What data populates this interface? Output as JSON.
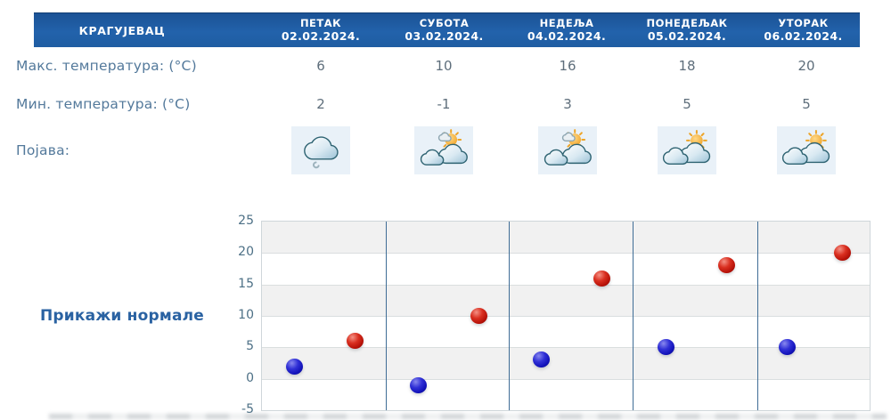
{
  "location": "КРАГУЈЕВАЦ",
  "days": [
    {
      "name": "ПЕТАК",
      "date": "02.02.2024."
    },
    {
      "name": "СУБОТА",
      "date": "03.02.2024."
    },
    {
      "name": "НЕДЕЉА",
      "date": "04.02.2024."
    },
    {
      "name": "ПОНЕДЕЉАК",
      "date": "05.02.2024."
    },
    {
      "name": "УТОРАК",
      "date": "06.02.2024."
    }
  ],
  "rows": {
    "max_temp": {
      "label": "Макс. температура: (°C)",
      "values": [
        "6",
        "10",
        "16",
        "18",
        "20"
      ]
    },
    "min_temp": {
      "label": "Мин. температура: (°C)",
      "values": [
        "2",
        "-1",
        "3",
        "5",
        "5"
      ]
    },
    "phenomena": {
      "label": "Појава:",
      "icons": [
        "cloud-drizzle-icon",
        "sun-behind-clouds-icon",
        "sun-behind-clouds-icon",
        "cloud-sun-icon",
        "cloud-sun-icon"
      ]
    }
  },
  "controls": {
    "show_normals_label": "Прикажи нормале"
  },
  "colors": {
    "header_blue": "#2262ab",
    "min_dot": "#1111b8",
    "max_dot": "#cc1410",
    "separator": "#3f6d96",
    "icon_tile_bg": "#e9f1f8"
  },
  "chart_data": {
    "type": "scatter",
    "categories": [
      "ПЕТАК 02.02.2024.",
      "СУБОТА 03.02.2024.",
      "НЕДЕЉА 04.02.2024.",
      "ПОНЕДЕЉАК 05.02.2024.",
      "УТОРАК 06.02.2024."
    ],
    "series": [
      {
        "name": "Мин. температура (°C)",
        "color": "#1111b8",
        "values": [
          2,
          -1,
          3,
          5,
          5
        ]
      },
      {
        "name": "Макс. температура (°C)",
        "color": "#cc1410",
        "values": [
          6,
          10,
          16,
          18,
          20
        ]
      }
    ],
    "title": "",
    "xlabel": "",
    "ylabel": "",
    "ylim": [
      -5,
      25
    ],
    "yticks": [
      25,
      20,
      15,
      10,
      5,
      0,
      -5
    ],
    "grid": true,
    "gray_bands": [
      [
        0,
        5
      ],
      [
        10,
        15
      ],
      [
        20,
        25
      ]
    ],
    "legend_position": "none"
  }
}
